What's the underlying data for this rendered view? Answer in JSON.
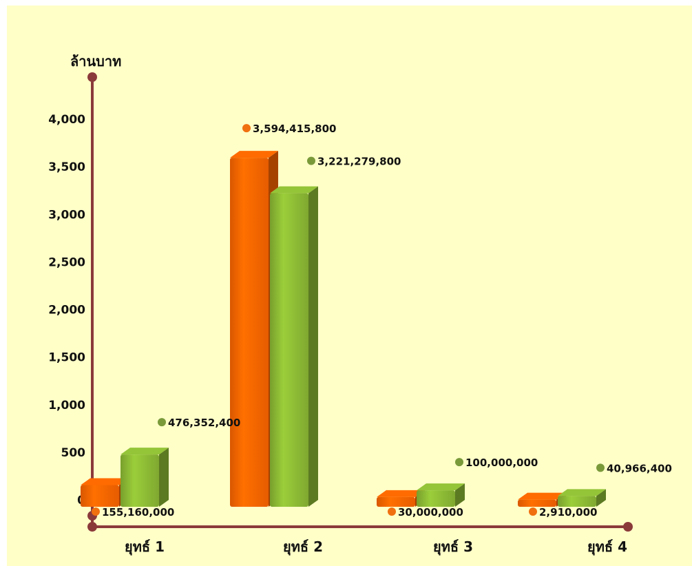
{
  "chart_data": {
    "type": "bar",
    "ylabel": "ล้านบาท",
    "xlabel": "",
    "categories": [
      "ยุทธ์ 1",
      "ยุทธ์ 2",
      "ยุทธ์ 3",
      "ยุทธ์ 4"
    ],
    "yticks": [
      "0",
      "500",
      "1,000",
      "1,500",
      "2,000",
      "2,500",
      "3,000",
      "3,500",
      "4,000"
    ],
    "ylim": [
      0,
      4000
    ],
    "grid": false,
    "series": [
      {
        "color": "#ff6600",
        "values": [
          155.16,
          3594.4158,
          30.0,
          2.91
        ],
        "labels": [
          "155,160,000",
          "3,594,415,800",
          "30,000,000",
          "2,910,000"
        ]
      },
      {
        "color": "#8dbb35",
        "values": [
          476.3524,
          3221.2798,
          100.0,
          40.9664
        ],
        "labels": [
          "476,352,400",
          "3,221,279,800",
          "100,000,000",
          "40,966,400"
        ]
      }
    ],
    "axis_color": "#8b3a3a"
  }
}
